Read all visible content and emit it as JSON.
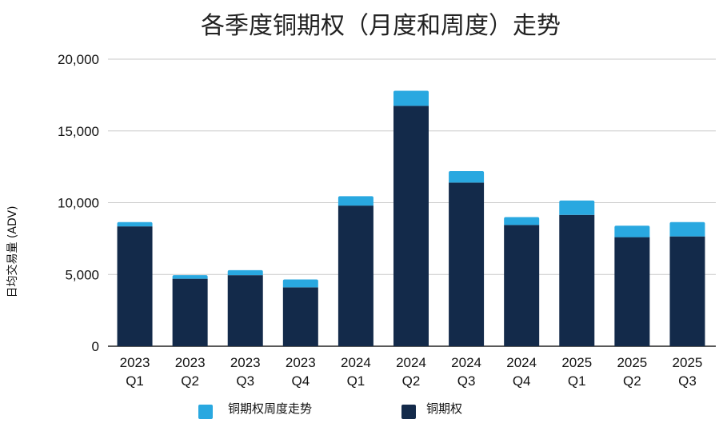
{
  "colors": {
    "weekly": "#29A8E0",
    "monthly": "#132A4A",
    "grid": "#C8C8C8",
    "axis": "#222222"
  },
  "chart_data": {
    "type": "bar",
    "stacked": true,
    "title": "各季度铜期权（月度和周度）走势",
    "xlabel": "",
    "ylabel": "日均交易量 (ADV)",
    "ylim": [
      0,
      20000
    ],
    "yticks": [
      "0",
      "5,000",
      "10,000",
      "15,000",
      "20,000"
    ],
    "ytick_values": [
      0,
      5000,
      10000,
      15000,
      20000
    ],
    "grid": true,
    "legend_position": "bottom",
    "categories": [
      [
        "2023",
        "Q1"
      ],
      [
        "2023",
        "Q2"
      ],
      [
        "2023",
        "Q3"
      ],
      [
        "2023",
        "Q4"
      ],
      [
        "2024",
        "Q1"
      ],
      [
        "2024",
        "Q2"
      ],
      [
        "2024",
        "Q3"
      ],
      [
        "2024",
        "Q4"
      ],
      [
        "2025",
        "Q1"
      ],
      [
        "2025",
        "Q2"
      ],
      [
        "2025",
        "Q3"
      ]
    ],
    "series": [
      {
        "name": "铜期权",
        "key": "monthly",
        "values": [
          8350,
          4700,
          4950,
          4100,
          9800,
          16750,
          11400,
          8450,
          9150,
          7600,
          7650
        ]
      },
      {
        "name": "铜期权周度走势",
        "key": "weekly",
        "values": [
          300,
          250,
          350,
          550,
          650,
          1050,
          800,
          550,
          1000,
          800,
          1000
        ]
      }
    ],
    "legend": [
      {
        "name": "铜期权周度走势",
        "key": "weekly"
      },
      {
        "name": "铜期权",
        "key": "monthly"
      }
    ]
  }
}
